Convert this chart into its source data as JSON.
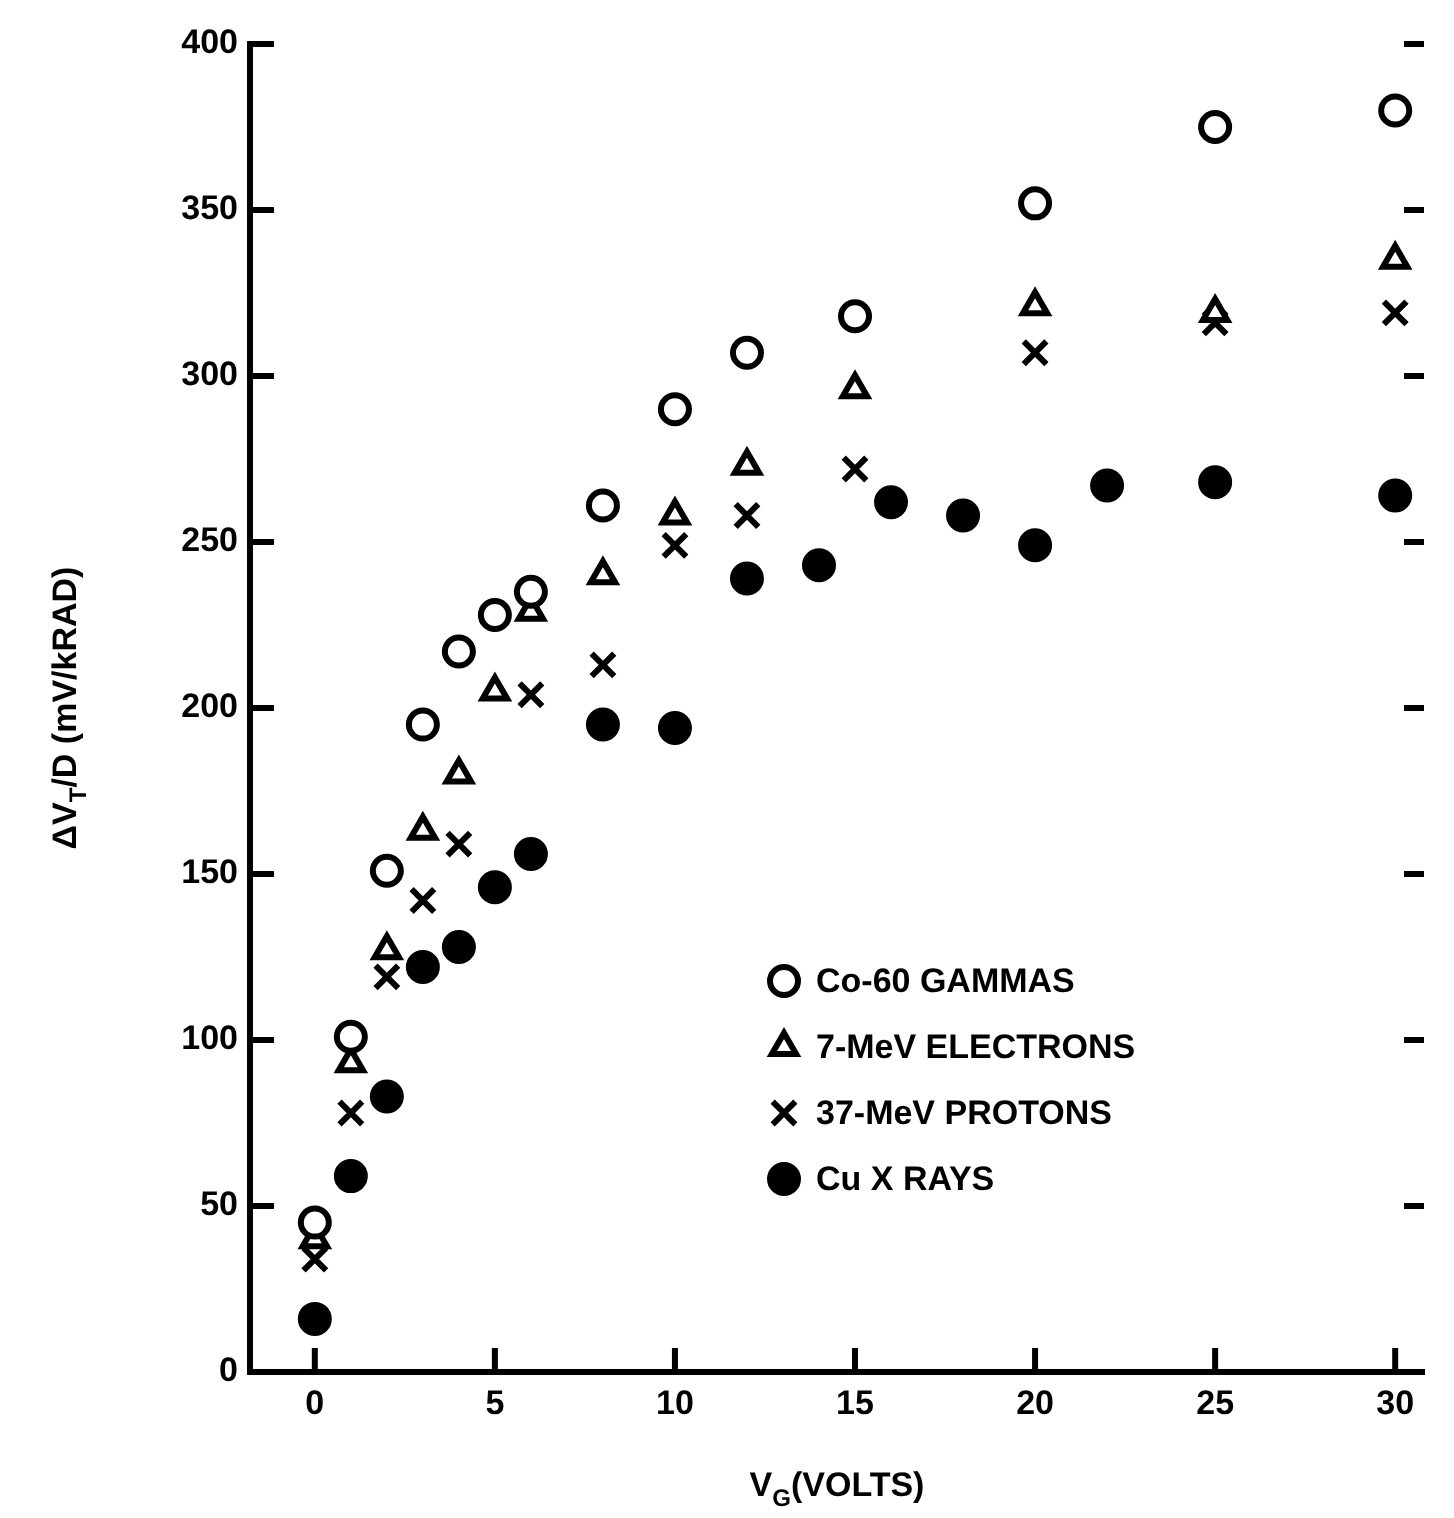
{
  "chart_data": {
    "type": "scatter",
    "xlabel": "V$_{G}$(VOLTS)",
    "ylabel": "ΔV$_{T}$/D (mV/kRAD)",
    "xlim": [
      -1.8,
      30.8
    ],
    "xticks": [
      0,
      5,
      10,
      15,
      20,
      25,
      30
    ],
    "ylim": [
      0,
      400
    ],
    "yticks": [
      0,
      50,
      100,
      150,
      200,
      250,
      300,
      350,
      400
    ],
    "grid": false,
    "legend": "bottom right",
    "series": [
      {
        "name": "Co-60 GAMMAS",
        "color": "#000000",
        "marker": "circle",
        "x": [
          0,
          1,
          2,
          3,
          4,
          5,
          6,
          8,
          10,
          12,
          15,
          20,
          25,
          30
        ],
        "values": [
          45,
          101,
          151,
          195,
          217,
          228,
          235,
          261,
          290,
          307,
          318,
          352,
          375,
          380
        ]
      },
      {
        "name": "7-MeV ELECTRONS",
        "color": "#000000",
        "marker": "triangle",
        "x": [
          0,
          1,
          2,
          3,
          4,
          5,
          6,
          8,
          10,
          12,
          15,
          20,
          25,
          30
        ],
        "values": [
          40,
          93,
          127,
          163,
          180,
          205,
          229,
          240,
          258,
          273,
          296,
          321,
          319,
          335
        ]
      },
      {
        "name": "37-MeV PROTONS",
        "color": "#000000",
        "marker": "cross",
        "x": [
          0,
          1,
          2,
          3,
          4,
          6,
          8,
          10,
          12,
          15,
          20,
          25,
          30
        ],
        "values": [
          34,
          78,
          119,
          142,
          159,
          204,
          213,
          249,
          258,
          272,
          307,
          316,
          319
        ]
      },
      {
        "name": "Cu X RAYS",
        "color": "#000000",
        "marker": "circle",
        "x": [
          0,
          1,
          2,
          3,
          4,
          5,
          6,
          8,
          10,
          12,
          14,
          16,
          18,
          20,
          22,
          25,
          30
        ],
        "values": [
          16,
          59,
          83,
          122,
          128,
          146,
          156,
          195,
          194,
          239,
          243,
          262,
          258,
          249,
          267,
          268,
          264
        ]
      }
    ]
  }
}
